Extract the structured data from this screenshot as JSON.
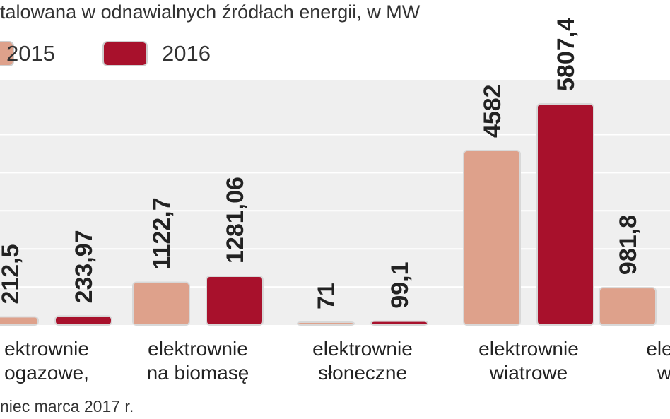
{
  "subtitle": "talowana w odnawialnych źródłach energii, w MW",
  "footnote": "niec marca 2017 r.",
  "colors": {
    "s2015": "#dea18b",
    "s2016": "#a8112c",
    "plot_bg": "#efefef",
    "grid": "#ffffff"
  },
  "chart_data": {
    "type": "bar",
    "title": "",
    "subtitle": "talowana w odnawialnych źródłach energii, w MW",
    "categories": [
      [
        "ektrownie",
        "ogazowe,"
      ],
      [
        "elektrownie",
        "na biomasę"
      ],
      [
        "elektrownie",
        "słoneczne"
      ],
      [
        "elektrownie",
        "wiatrowe"
      ],
      [
        "elek",
        "w"
      ]
    ],
    "series": [
      {
        "name": "2015",
        "values": [
          212.5,
          1122.7,
          71,
          4582,
          981.8
        ],
        "labels": [
          "212,5",
          "1122,7",
          "71",
          "4582",
          "981,8"
        ]
      },
      {
        "name": "2016",
        "values": [
          233.97,
          1281.06,
          99.1,
          5807.4,
          null
        ],
        "labels": [
          "233,97",
          "1281,06",
          "99,1",
          "5807,4",
          ""
        ]
      }
    ],
    "ylim": [
      0,
      6000
    ],
    "grid": true,
    "legend": "top-left"
  }
}
